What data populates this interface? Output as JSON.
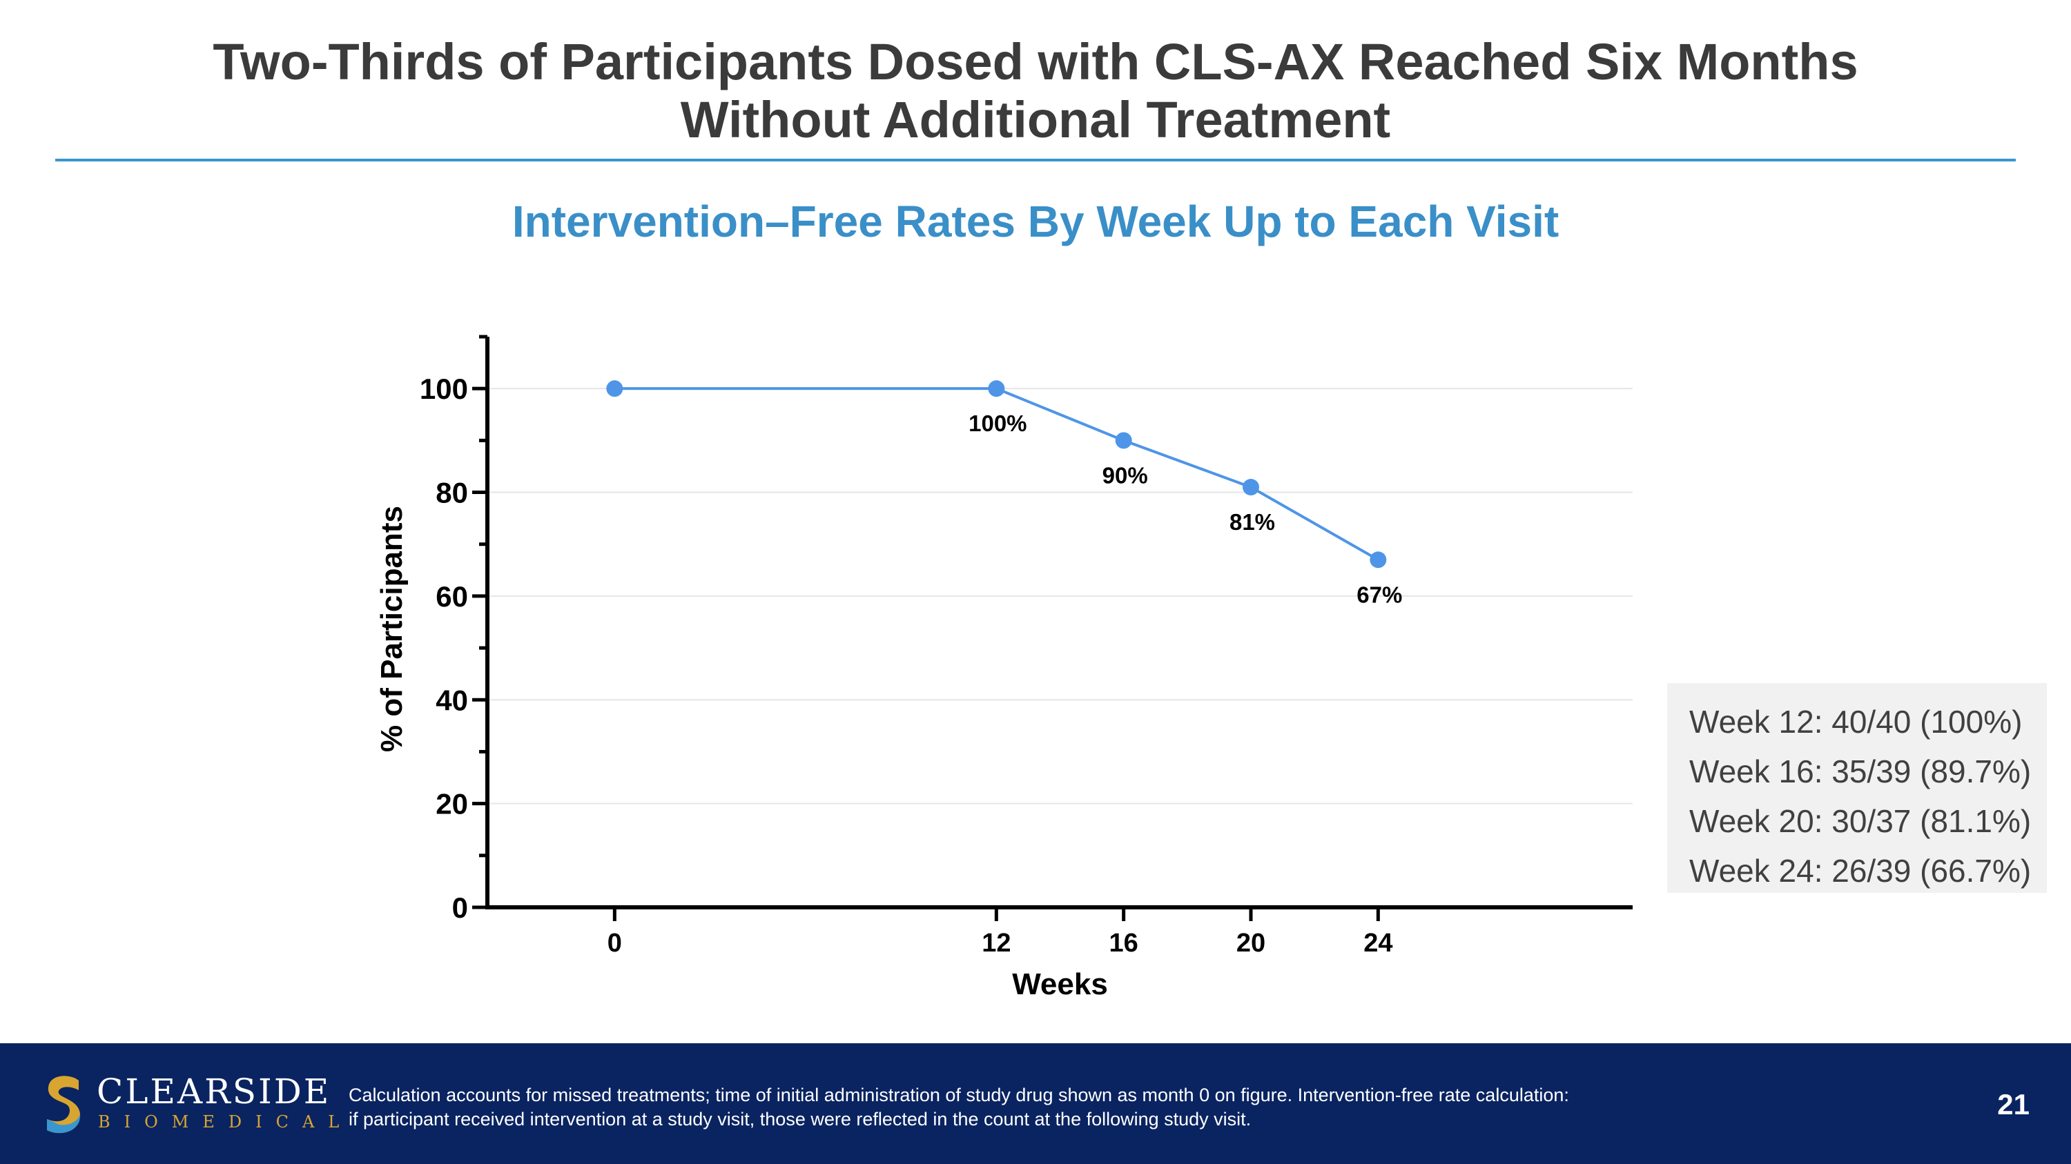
{
  "header": {
    "title_line1": "Two-Thirds of Participants Dosed with CLS-AX Reached Six Months",
    "title_line2": "Without Additional Treatment"
  },
  "colors": {
    "accent_blue": "#3a8fc8",
    "series_blue": "#4e95e8",
    "footer_navy": "#0a2461",
    "logo_gold": "#d9a531"
  },
  "chart_data": {
    "type": "line",
    "title": "Intervention–Free Rates By Week Up to Each Visit",
    "xlabel": "Weeks",
    "ylabel": "% of Participants",
    "x": [
      0,
      12,
      16,
      20,
      24
    ],
    "values": [
      100,
      100,
      90,
      81,
      67
    ],
    "point_labels": [
      "",
      "100%",
      "90%",
      "81%",
      "67%"
    ],
    "x_ticks": [
      0,
      12,
      16,
      20,
      24
    ],
    "y_ticks": [
      0,
      20,
      40,
      60,
      80,
      100
    ],
    "xlim": [
      -4,
      32
    ],
    "ylim": [
      0,
      110
    ],
    "grid": true,
    "legend": "none"
  },
  "stats_box": {
    "rows": [
      "Week 12: 40/40 (100%)",
      "Week 16: 35/39 (89.7%)",
      "Week 20: 30/37 (81.1%)",
      "Week 24: 26/39 (66.7%)"
    ]
  },
  "footer": {
    "logo_name": "CLEARSIDE",
    "logo_sub": "BIOMEDICAL",
    "note_line1": "Calculation accounts for missed treatments; time of initial administration of study drug shown as month 0 on figure. Intervention-free rate calculation:",
    "note_line2": "if participant received intervention at a study visit, those were reflected in the count at the following study visit.",
    "page_number": "21"
  }
}
